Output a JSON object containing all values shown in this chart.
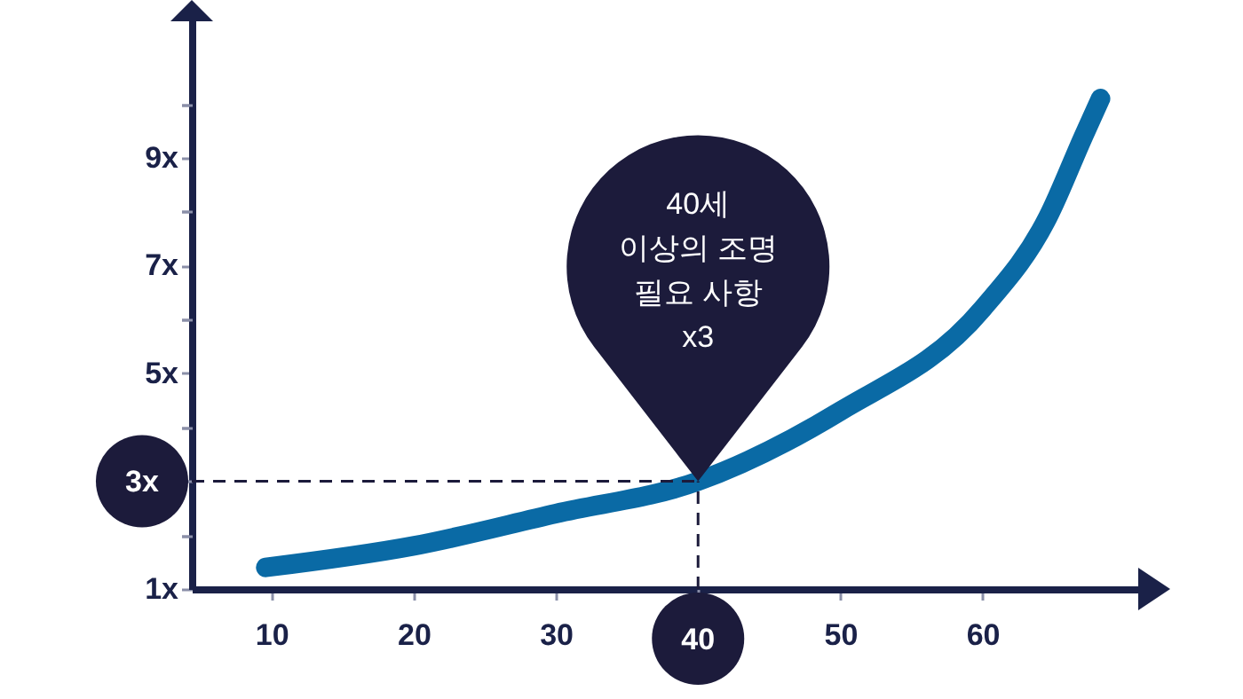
{
  "chart_data": {
    "type": "line",
    "x": [
      9.6,
      20,
      30,
      40,
      50,
      60,
      64.6,
      67.1,
      68.3
    ],
    "series": [
      {
        "color": "#0a6aa5",
        "values": [
          1.4,
          1.8,
          2.4,
          3,
          4.3,
          6.2,
          7.9,
          9.4,
          10.1
        ]
      }
    ],
    "xlim": [
      4.4,
      71.2
    ],
    "ylim": [
      1,
      11.6
    ],
    "xticks": [
      10,
      20,
      30,
      {
        "value": 40,
        "label": null
      },
      50,
      60
    ],
    "yticks": [
      {
        "value": 1,
        "label": "1x"
      },
      {
        "value": 2,
        "label": null
      },
      {
        "value": 3,
        "label": null
      },
      {
        "value": 4,
        "label": null
      },
      {
        "value": 5,
        "label": "5x"
      },
      {
        "value": 6,
        "label": null
      },
      {
        "value": 7,
        "label": "7x"
      },
      {
        "value": 8,
        "label": null
      },
      {
        "value": 9,
        "label": "9x"
      },
      {
        "value": 10,
        "label": null
      }
    ],
    "ref_lines": [
      {
        "axis": "y",
        "value": 3,
        "label": "3x",
        "color": "#1c1b3b",
        "line_style": "dashed"
      },
      {
        "axis": "x",
        "value": 40,
        "label": "40",
        "color": "#1c1b3b",
        "line_style": "dashed"
      }
    ],
    "annotations": [
      "40세\n이상의 조명\n필요 사항\nx3"
    ]
  }
}
